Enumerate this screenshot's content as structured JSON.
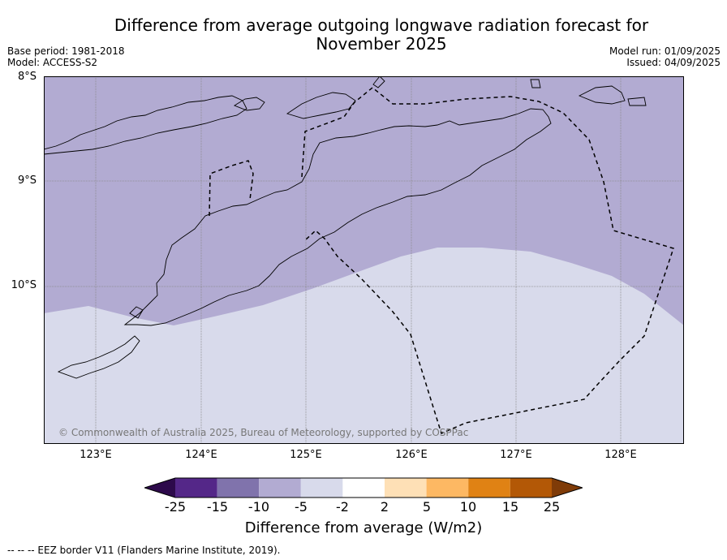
{
  "title": "Difference from average outgoing longwave radiation forecast for November 2025",
  "base_period": "Base period: 1981-2018",
  "model": "Model: ACCESS-S2",
  "model_run": "Model run: 01/09/2025",
  "issued": "Issued: 04/09/2025",
  "copyright": "© Commonwealth of Australia 2025, Bureau of Meteorology, supported by COSPPac",
  "latitude_labels": [
    "8°S",
    "9°S",
    "10°S"
  ],
  "longitude_labels": [
    "123°E",
    "124°E",
    "125°E",
    "126°E",
    "127°E",
    "128°E"
  ],
  "colorbar": {
    "title": "Difference from average (W/m2)",
    "labels": [
      "-25",
      "-15",
      "-10",
      "-5",
      "-2",
      "2",
      "5",
      "10",
      "15",
      "25"
    ],
    "colors": [
      "#2d0a4b",
      "#542788",
      "#8073ac",
      "#b2abd2",
      "#d8daeb",
      "#ffffff",
      "#fee0b6",
      "#fdb863",
      "#e08214",
      "#b35806",
      "#7f3b08"
    ]
  },
  "footnote": "--  --  -- EEZ border V11 (Flanders Marine Institute, 2019).",
  "map_colors": {
    "band_minus10_to_minus5": "#b2abd2",
    "band_minus5_to_minus2": "#d8daeb"
  }
}
